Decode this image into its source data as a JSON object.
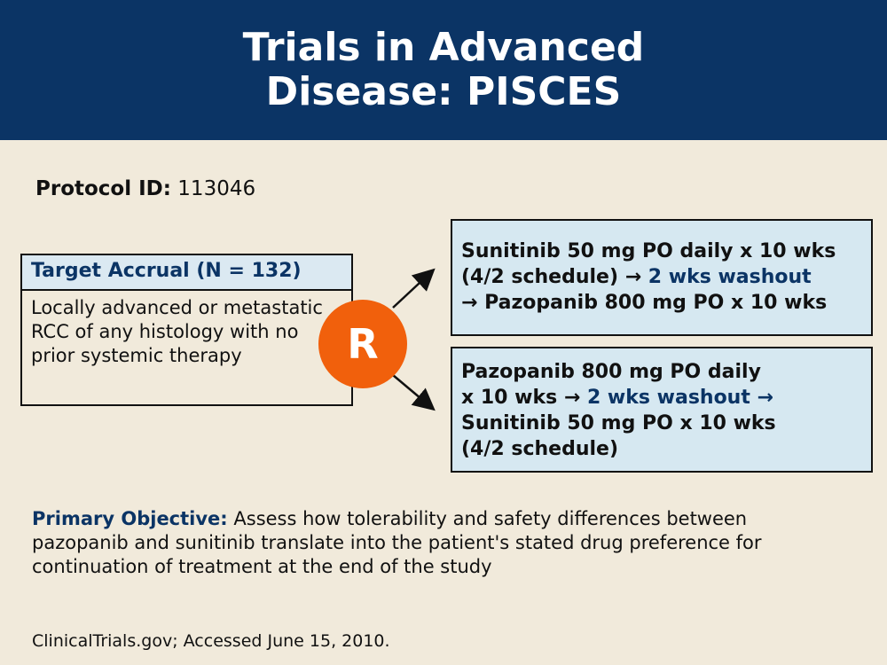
{
  "title": "Trials in Advanced\nDisease: PISCES",
  "protocol": {
    "label": "Protocol ID:",
    "value": "113046"
  },
  "accrual": {
    "header": "Target Accrual (N = 132)",
    "body": "Locally advanced or metastatic RCC of any histology with no prior systemic therapy"
  },
  "randomization_label": "R",
  "arm1": {
    "line1": "Sunitinib 50 mg PO daily x 10 wks",
    "line2a": "(4/2 schedule)",
    "arrow": "→",
    "washout": "2 wks washout",
    "line3": "Pazopanib 800 mg PO x 10 wks"
  },
  "arm2": {
    "line1": "Pazopanib 800 mg PO daily",
    "line2a": "x 10 wks",
    "arrow": "→",
    "washout": "2 wks washout",
    "line3": "Sunitinib 50 mg PO x 10 wks",
    "line4": "(4/2 schedule)"
  },
  "objective": {
    "label": "Primary Objective:",
    "text": "Assess how tolerability and safety differences between pazopanib and sunitinib translate into the patient's stated drug preference for continuation of treatment at the end of the study"
  },
  "source": "ClinicalTrials.gov; Accessed June 15, 2010.",
  "colors": {
    "header_bg": "#0b3465",
    "background": "#f1eadb",
    "accent_orange": "#f1600c",
    "arm_box_bg": "#d6e8f1",
    "accent_blue": "#0b3465"
  }
}
